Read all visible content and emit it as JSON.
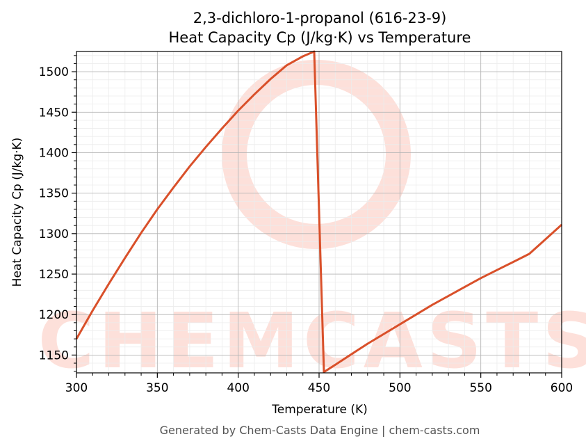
{
  "chart_data": {
    "type": "line",
    "title": "2,3-dichloro-1-propanol (616-23-9)",
    "subtitle": "Heat Capacity Cp (J/kg·K) vs Temperature",
    "xlabel": "Temperature (K)",
    "ylabel": "Heat Capacity Cp (J/kg·K)",
    "xlim": [
      300,
      600
    ],
    "ylim": [
      1128,
      1525
    ],
    "xticks": [
      300,
      350,
      400,
      450,
      500,
      550,
      600
    ],
    "yticks": [
      1150,
      1200,
      1250,
      1300,
      1350,
      1400,
      1450,
      1500
    ],
    "grid": true,
    "legend": "none",
    "series": [
      {
        "color": "#d9502a",
        "x": [
          300,
          310,
          320,
          330,
          340,
          350,
          360,
          370,
          380,
          390,
          400,
          410,
          420,
          430,
          440,
          447,
          453,
          460,
          470,
          480,
          490,
          500,
          510,
          520,
          530,
          540,
          550,
          560,
          570,
          580,
          590,
          600
        ],
        "y": [
          1170,
          1205,
          1238,
          1270,
          1301,
          1330,
          1357,
          1383,
          1407,
          1430,
          1452,
          1472,
          1491,
          1508,
          1519,
          1525,
          1129,
          1138,
          1151,
          1164,
          1176,
          1188,
          1200,
          1212,
          1223,
          1234,
          1245,
          1255,
          1265,
          1275,
          1293,
          1311
        ]
      }
    ]
  },
  "watermark": {
    "text": "CHEMCASTS",
    "color": "#fde0da"
  },
  "footer": "Generated by Chem-Casts Data Engine | chem-casts.com"
}
